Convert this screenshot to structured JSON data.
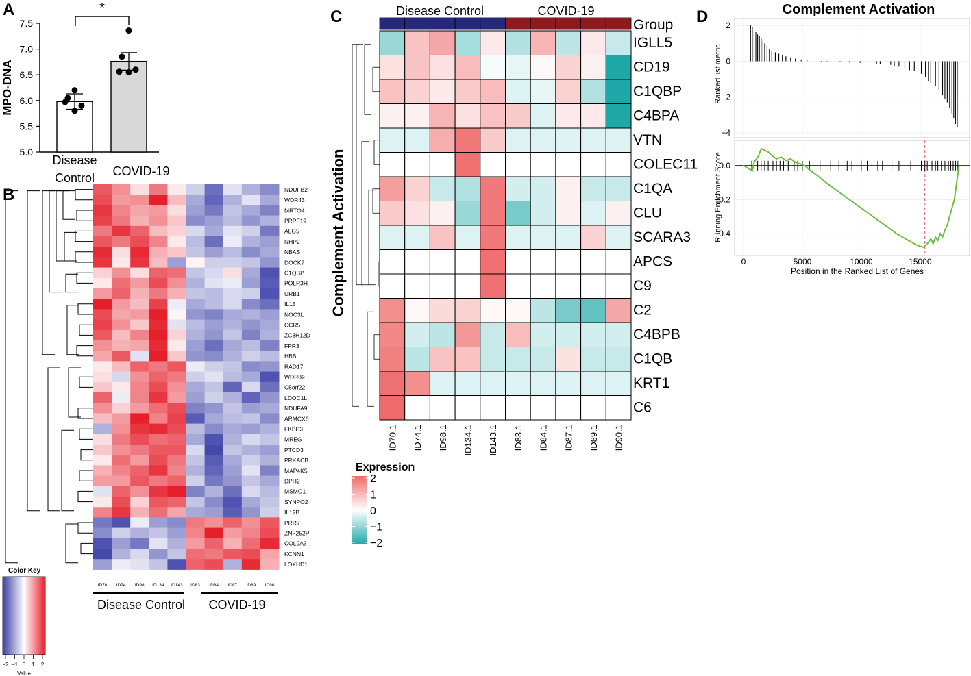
{
  "figure": {
    "panel_labels": [
      "A",
      "B",
      "C",
      "D"
    ]
  },
  "chart_data": [
    {
      "panel": "A",
      "type": "bar",
      "categories": [
        "Disease Control",
        "COVID-19"
      ],
      "category_lines": [
        [
          "Disease",
          "Control"
        ],
        [
          "COVID-19"
        ]
      ],
      "values": [
        5.98,
        6.76
      ],
      "errors": [
        0.15,
        0.17
      ],
      "points": [
        [
          6.2,
          6.05,
          5.9,
          5.97,
          5.8
        ],
        [
          7.36,
          6.85,
          6.6,
          6.56,
          6.55
        ]
      ],
      "ylabel": "MPO-DNA",
      "ylim": [
        5.0,
        7.5
      ],
      "yticks": [
        "5.0",
        "5.5",
        "6.0",
        "6.5",
        "7.0",
        "7.5"
      ],
      "significance": "*",
      "colors": [
        "#ffffff",
        "#d9d9d9"
      ]
    },
    {
      "panel": "B",
      "type": "heatmap",
      "samples": [
        "ID70",
        "ID74",
        "ID98",
        "ID134",
        "ID143",
        "ID83",
        "ID84",
        "ID87",
        "ID89",
        "ID90"
      ],
      "genes": [
        "NDUFB2",
        "WDR43",
        "MRTO4",
        "PRPF19",
        "ALG5",
        "NHP2",
        "NBAS",
        "DOCK7",
        "C1QBP",
        "POLR3H",
        "URB1",
        "IL15",
        "NOC3L",
        "CCR5",
        "ZC3H12D",
        "FPR3",
        "HBB",
        "RAD17",
        "WDR89",
        "C5orf22",
        "LDOC1L",
        "NDUFA9",
        "ARMCX6",
        "FKBP3",
        "MREG",
        "PTCD3",
        "PRKACB",
        "MAP4K5",
        "DPH2",
        "MSMO1",
        "SYNPO2",
        "IL12B",
        "PRR7",
        "ZNF252P",
        "COL9A3",
        "KCNN1",
        "LOXHD1"
      ],
      "values": [
        [
          1.5,
          1.0,
          0.3,
          1.2,
          0.2,
          -0.5,
          -1.5,
          -0.3,
          -0.8,
          -1.2
        ],
        [
          1.6,
          0.9,
          1.0,
          2.0,
          0.6,
          -0.9,
          -1.6,
          -0.8,
          -0.3,
          -0.9
        ],
        [
          1.8,
          1.1,
          0.8,
          0.9,
          0.3,
          -1.0,
          -1.4,
          -0.6,
          -0.9,
          -1.3
        ],
        [
          1.7,
          1.2,
          0.7,
          1.0,
          0.5,
          -1.2,
          -1.0,
          -0.7,
          -1.1,
          -0.8
        ],
        [
          1.2,
          1.8,
          1.4,
          0.6,
          0.4,
          -0.4,
          -0.9,
          -0.3,
          -0.5,
          -1.4
        ],
        [
          1.5,
          1.2,
          1.6,
          1.1,
          0.2,
          -0.7,
          -1.5,
          -0.2,
          -0.8,
          -1.0
        ],
        [
          1.9,
          0.3,
          1.9,
          0.7,
          0.5,
          -0.6,
          -1.0,
          -0.7,
          -1.2,
          -0.9
        ],
        [
          1.8,
          0.2,
          1.8,
          0.6,
          -1.0,
          0.1,
          -0.5,
          -0.5,
          -0.6,
          -1.1
        ],
        [
          0.4,
          1.0,
          0.3,
          1.4,
          1.3,
          -0.6,
          -0.4,
          0.3,
          -0.9,
          -1.8
        ],
        [
          0.2,
          1.3,
          0.9,
          1.6,
          1.0,
          -0.8,
          -0.3,
          -0.2,
          -1.0,
          -1.7
        ],
        [
          0.9,
          1.4,
          0.7,
          1.2,
          0.7,
          -0.6,
          -0.7,
          -0.4,
          -0.5,
          -1.8
        ],
        [
          2.0,
          0.9,
          0.6,
          1.7,
          -0.2,
          -0.9,
          -0.7,
          -0.4,
          -1.2,
          -1.5
        ],
        [
          1.6,
          0.8,
          0.9,
          2.0,
          0.1,
          -1.1,
          -1.3,
          -0.9,
          -0.8,
          -1.0
        ],
        [
          1.7,
          1.0,
          0.5,
          1.9,
          -0.3,
          -0.7,
          -1.0,
          -0.8,
          -1.1,
          -0.9
        ],
        [
          1.5,
          0.6,
          1.1,
          2.0,
          0.4,
          -0.8,
          -1.1,
          -0.6,
          -1.3,
          -0.8
        ],
        [
          1.0,
          0.7,
          0.8,
          1.9,
          0.2,
          -1.0,
          -1.5,
          -0.9,
          -0.7,
          -1.3
        ],
        [
          0.8,
          1.5,
          -0.3,
          2.0,
          0.5,
          -1.1,
          -1.2,
          -0.8,
          -0.5,
          -0.7
        ],
        [
          0.2,
          0.6,
          1.4,
          1.2,
          1.5,
          -0.2,
          -0.5,
          -0.6,
          -1.2,
          -1.1
        ],
        [
          0.3,
          -0.4,
          1.0,
          1.4,
          1.2,
          -0.5,
          -0.3,
          -0.7,
          -0.9,
          -1.8
        ],
        [
          0.5,
          0.2,
          1.1,
          1.6,
          1.0,
          -0.9,
          -0.6,
          -1.6,
          -0.4,
          -1.5
        ],
        [
          1.4,
          -0.2,
          1.1,
          1.8,
          0.9,
          -1.0,
          -0.5,
          -0.8,
          -1.6,
          -1.1
        ],
        [
          1.0,
          0.4,
          0.9,
          1.3,
          1.6,
          -1.3,
          -1.1,
          -0.6,
          -1.0,
          -0.9
        ],
        [
          0.6,
          0.9,
          2.0,
          1.1,
          1.7,
          -1.7,
          -0.9,
          -0.7,
          -0.6,
          -1.2
        ],
        [
          -0.8,
          1.0,
          1.8,
          1.9,
          1.6,
          -0.7,
          -1.2,
          -0.9,
          -1.0,
          -0.8
        ],
        [
          0.3,
          1.2,
          1.6,
          1.3,
          1.4,
          -0.9,
          -1.8,
          -0.8,
          -0.4,
          -0.6
        ],
        [
          0.5,
          1.0,
          1.2,
          1.5,
          1.5,
          -0.4,
          -1.9,
          -0.6,
          -0.8,
          -1.0
        ],
        [
          0.2,
          1.3,
          0.9,
          1.6,
          1.2,
          -0.6,
          -1.7,
          -0.9,
          -0.5,
          -0.8
        ],
        [
          0.7,
          1.1,
          1.4,
          1.8,
          1.1,
          -0.8,
          -1.6,
          -1.0,
          -0.3,
          -1.3
        ],
        [
          0.9,
          0.9,
          1.5,
          1.2,
          1.4,
          -0.5,
          -1.4,
          -1.1,
          -0.6,
          -0.9
        ],
        [
          -0.3,
          1.4,
          1.0,
          1.8,
          2.0,
          -1.3,
          -0.8,
          -1.5,
          -0.4,
          -0.7
        ],
        [
          0.2,
          1.6,
          0.4,
          1.5,
          1.4,
          -0.6,
          -1.2,
          -1.8,
          -0.9,
          -0.6
        ],
        [
          1.1,
          1.8,
          0.7,
          1.3,
          0.8,
          -0.9,
          -1.0,
          -1.7,
          -1.1,
          -0.5
        ],
        [
          -1.4,
          -1.8,
          -0.2,
          -1.0,
          -1.2,
          1.2,
          1.0,
          1.4,
          1.0,
          1.5
        ],
        [
          -1.2,
          -0.5,
          -0.8,
          -0.6,
          -1.0,
          1.1,
          2.0,
          0.9,
          1.1,
          1.6
        ],
        [
          -1.8,
          -1.0,
          -1.4,
          -0.3,
          -0.8,
          0.9,
          1.4,
          0.7,
          1.3,
          1.9
        ],
        [
          -1.9,
          -0.8,
          -0.4,
          -1.1,
          -0.6,
          1.3,
          1.2,
          1.5,
          1.6,
          0.8
        ],
        [
          -1.0,
          -0.2,
          -0.3,
          -0.6,
          -1.8,
          1.4,
          1.6,
          -0.8,
          1.9,
          0.7
        ]
      ],
      "groups": [
        "Disease Control",
        "COVID-19"
      ],
      "color_key": {
        "title": "Color Key",
        "ticks": [
          "−2",
          "−1",
          "0",
          "1",
          "2"
        ],
        "xlabel": "Value"
      },
      "colors": {
        "low": "#3b3fa8",
        "mid": "#ffffff",
        "high": "#e5202b"
      }
    },
    {
      "panel": "C",
      "type": "heatmap",
      "ylabel": "Complement Activation",
      "group_label": "Group",
      "groups": [
        "Disease Control",
        "COVID-19"
      ],
      "group_colors": [
        "#26297a",
        "#8e1a1e"
      ],
      "samples": [
        "ID70.1",
        "ID74.1",
        "ID98.1",
        "ID134.1",
        "ID143.1",
        "ID83.1",
        "ID84.1",
        "ID87.1",
        "ID89.1",
        "ID90.1"
      ],
      "sample_groups": [
        0,
        0,
        0,
        0,
        0,
        1,
        1,
        1,
        1,
        1
      ],
      "genes": [
        "IGLL5",
        "CD19",
        "C1QBP",
        "C4BPA",
        "VTN",
        "COLEC11",
        "C1QA",
        "CLU",
        "SCARA3",
        "APCS",
        "C9",
        "C2",
        "C4BPB",
        "C1QB",
        "KRT1",
        "C6"
      ],
      "values": [
        [
          -0.9,
          0.8,
          1.2,
          -0.8,
          0.3,
          -0.7,
          1.0,
          -0.6,
          0.3,
          -0.5
        ],
        [
          0.4,
          0.8,
          0.4,
          0.9,
          -0.1,
          -0.2,
          0.1,
          0.6,
          0.2,
          -2.0
        ],
        [
          0.8,
          0.6,
          0.3,
          0.7,
          0.9,
          -0.3,
          -0.2,
          0.6,
          -0.7,
          -2.0
        ],
        [
          0.2,
          0.2,
          1.0,
          0.4,
          0.8,
          0.7,
          -0.3,
          0.3,
          0.3,
          -2.0
        ],
        [
          -0.3,
          -0.3,
          1.1,
          1.8,
          0.7,
          -0.3,
          -0.3,
          -0.3,
          -0.3,
          -0.3
        ],
        [
          0.0,
          0.0,
          0.0,
          1.9,
          0.0,
          0.0,
          0.0,
          0.0,
          0.0,
          0.0
        ],
        [
          1.3,
          0.6,
          -0.5,
          -0.7,
          1.8,
          -0.4,
          -0.4,
          0.2,
          -0.5,
          -0.5
        ],
        [
          0.7,
          0.4,
          0.2,
          -0.9,
          1.8,
          -1.2,
          -0.4,
          0.2,
          -0.3,
          0.2
        ],
        [
          -0.3,
          -0.3,
          0.8,
          -0.3,
          1.8,
          -0.3,
          -0.3,
          -0.3,
          0.6,
          -0.3
        ],
        [
          0.0,
          0.0,
          0.0,
          0.0,
          1.9,
          0.0,
          0.0,
          0.0,
          0.0,
          0.0
        ],
        [
          0.0,
          0.0,
          0.0,
          0.0,
          1.9,
          0.0,
          0.0,
          0.0,
          0.0,
          0.0
        ],
        [
          1.5,
          0.1,
          0.5,
          0.6,
          0.1,
          0.1,
          -0.6,
          -1.2,
          -1.4,
          1.2
        ],
        [
          1.6,
          -0.4,
          -0.6,
          1.4,
          -0.5,
          0.9,
          -0.4,
          -0.4,
          -0.4,
          -0.4
        ],
        [
          1.7,
          -0.6,
          0.8,
          0.8,
          -0.5,
          -0.5,
          -0.5,
          0.4,
          -0.5,
          -0.5
        ],
        [
          1.9,
          1.5,
          -0.3,
          -0.3,
          -0.3,
          -0.3,
          -0.3,
          -0.3,
          -0.3,
          -0.3
        ],
        [
          2.0,
          0.0,
          0.0,
          0.0,
          0.0,
          0.0,
          0.0,
          0.0,
          0.0,
          0.0
        ]
      ],
      "legend": {
        "title": "Expression",
        "ticks": [
          "2",
          "1",
          "0",
          "−1",
          "−2"
        ]
      },
      "colors": {
        "low": "#1fa8a8",
        "mid": "#ffffff",
        "high": "#ef6a6a"
      }
    },
    {
      "panel": "D",
      "type": "line",
      "title": "Complement Activation",
      "xlabel": "Position in the Ranked List of Genes",
      "xlim": [
        0,
        18500
      ],
      "xticks": [
        "0",
        "5000",
        "10000",
        "15000"
      ],
      "top": {
        "ylabel": "Ranked list metric",
        "ylim": [
          -4,
          2.2
        ],
        "yticks": [
          "2",
          "0",
          "−2",
          "−4"
        ],
        "bars_x": [
          600,
          750,
          900,
          1050,
          1200,
          1350,
          1500,
          1650,
          1800,
          2000,
          2200,
          2400,
          2700,
          3000,
          3300,
          3600,
          4000,
          4400,
          4900,
          5400,
          6600,
          7100,
          8200,
          9000,
          9900,
          11300,
          11600,
          12500,
          12800,
          13200,
          13700,
          14100,
          14500,
          15100,
          15450,
          15700,
          15900,
          16300,
          16600,
          16900,
          17100,
          17300,
          17500,
          17700,
          17850,
          18000,
          18150
        ],
        "bars_y": [
          2.05,
          1.9,
          1.75,
          1.65,
          1.5,
          1.4,
          1.3,
          1.15,
          1.0,
          0.9,
          0.7,
          0.6,
          0.5,
          0.42,
          0.35,
          0.28,
          0.22,
          0.15,
          0.1,
          0.05,
          -0.02,
          -0.03,
          -0.05,
          -0.07,
          -0.09,
          -0.12,
          -0.14,
          -0.2,
          -0.25,
          -0.3,
          -0.4,
          -0.5,
          -0.55,
          -0.7,
          -0.9,
          -1.1,
          -1.2,
          -1.4,
          -1.6,
          -1.9,
          -2.1,
          -2.3,
          -2.6,
          -2.9,
          -3.2,
          -3.5,
          -3.7
        ]
      },
      "bottom": {
        "ylabel": "Running Enrichment Score",
        "ylim": [
          -0.5,
          0.12
        ],
        "yticks": [
          "0.0",
          "−0.2",
          "−0.4"
        ],
        "x": [
          0,
          500,
          750,
          900,
          1100,
          1300,
          1500,
          1800,
          2100,
          2400,
          2800,
          3200,
          3600,
          4000,
          4400,
          4800,
          5200,
          5700,
          6300,
          7000,
          8000,
          9000,
          10000,
          11000,
          12000,
          13000,
          14000,
          14800,
          15300,
          15450,
          15700,
          15900,
          16100,
          16300,
          16500,
          16700,
          16900,
          17100,
          17300,
          17500,
          17700,
          17900,
          18100,
          18300
        ],
        "y": [
          0.0,
          -0.02,
          -0.03,
          0.02,
          0.04,
          0.06,
          0.1,
          0.09,
          0.08,
          0.06,
          0.04,
          0.05,
          0.03,
          0.04,
          0.02,
          0.01,
          0.0,
          -0.03,
          -0.06,
          -0.1,
          -0.15,
          -0.2,
          -0.25,
          -0.3,
          -0.35,
          -0.4,
          -0.44,
          -0.47,
          -0.48,
          -0.47,
          -0.45,
          -0.43,
          -0.46,
          -0.42,
          -0.44,
          -0.4,
          -0.42,
          -0.38,
          -0.35,
          -0.3,
          -0.25,
          -0.2,
          -0.1,
          0.0
        ],
        "hits_x": [
          700,
          1200,
          1500,
          1800,
          2100,
          2500,
          2800,
          3100,
          3400,
          3800,
          4300,
          4600,
          5000,
          5600,
          6500,
          7400,
          8100,
          8800,
          9200,
          10000,
          10500,
          11400,
          11800,
          12600,
          13200,
          13700,
          14200,
          15100,
          15400,
          15600,
          16000,
          16300,
          16500,
          16800,
          17100,
          17400,
          17600,
          17800,
          18000,
          18200
        ],
        "peak_x": 15400
      },
      "colors": {
        "curve": "#6cbf3f",
        "peak_line": "#e57373"
      }
    }
  ]
}
